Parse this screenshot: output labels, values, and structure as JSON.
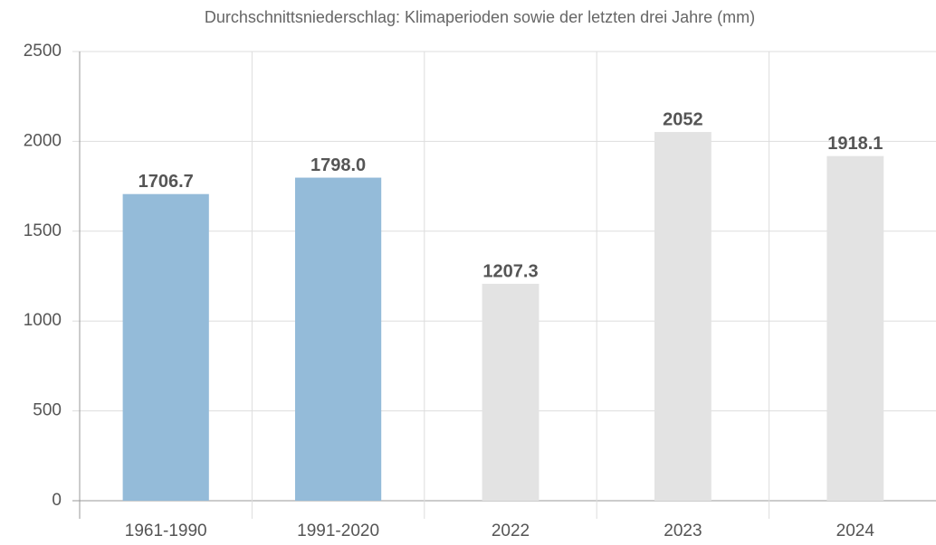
{
  "chart_data": {
    "type": "bar",
    "title": "Durchschnittsniederschlag: Klimaperioden sowie der letzten drei Jahre (mm)",
    "categories": [
      "1961-1990",
      "1991-2020",
      "2022",
      "2023",
      "2024"
    ],
    "values": [
      1706.7,
      1798,
      1207.3,
      2052,
      1918.1
    ],
    "value_labels": [
      "1706.7",
      "1798.0",
      "1207.3",
      "2052",
      "1918.1"
    ],
    "colors": [
      "#94bbd9",
      "#94bbd9",
      "#e3e3e3",
      "#e3e3e3",
      "#e3e3e3"
    ],
    "ylim": [
      0,
      2500
    ],
    "yticks": [
      0,
      500,
      1000,
      1500,
      2000,
      2500
    ],
    "grid": true
  }
}
